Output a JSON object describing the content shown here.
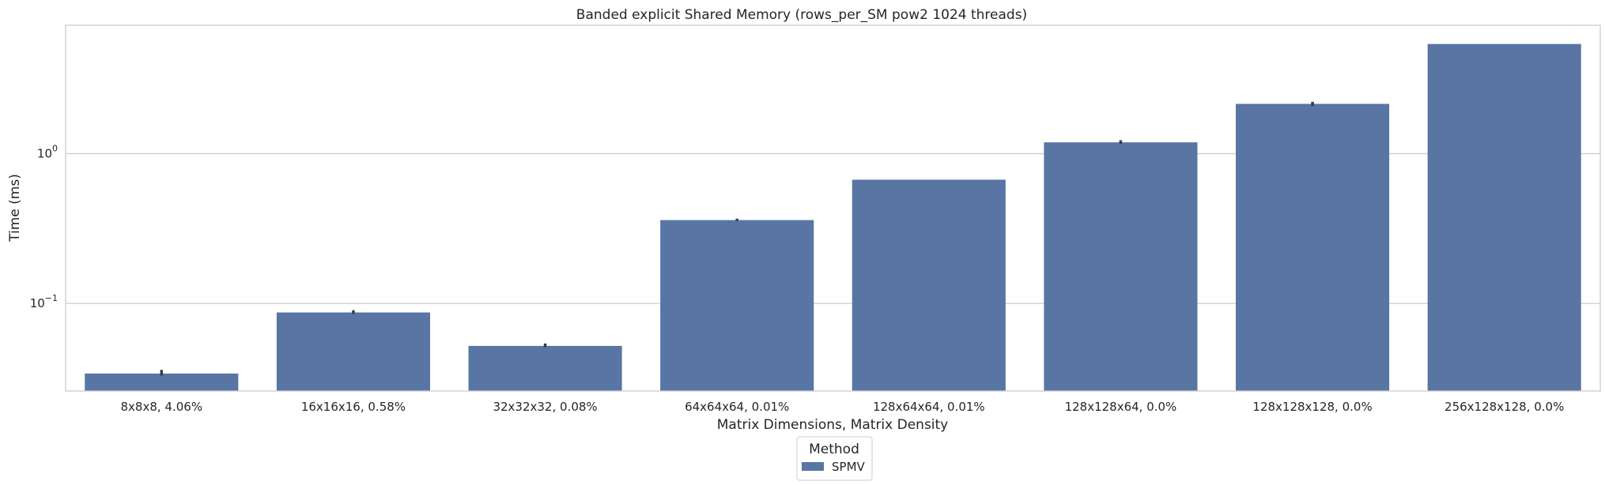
{
  "chart_data": {
    "type": "bar",
    "title": "Banded explicit Shared Memory (rows_per_SM pow2 1024 threads)",
    "xlabel": "Matrix Dimensions, Matrix Density",
    "ylabel": "Time (ms)",
    "yscale": "log",
    "ylim": [
      0.026,
      7.2
    ],
    "yticks": [
      {
        "value": 0.1,
        "base": "10",
        "exp": "−1"
      },
      {
        "value": 1,
        "base": "10",
        "exp": "0"
      }
    ],
    "grid": "horizontal",
    "categories": [
      "8x8x8, 4.06%",
      "16x16x16, 0.58%",
      "32x32x32, 0.08%",
      "64x64x64, 0.01%",
      "128x64x64, 0.01%",
      "128x128x64, 0.0%",
      "128x128x128, 0.0%",
      "256x128x128, 0.0%"
    ],
    "series": [
      {
        "name": "SPMV",
        "color": "#5875a4",
        "values": [
          0.034,
          0.087,
          0.052,
          0.36,
          0.67,
          1.19,
          2.15,
          5.4
        ],
        "error_bars": [
          [
            0.033,
            0.036
          ],
          [
            0.085,
            0.09
          ],
          [
            0.051,
            0.054
          ],
          [
            0.355,
            0.368
          ],
          null,
          [
            1.16,
            1.23
          ],
          [
            2.08,
            2.22
          ],
          null
        ]
      }
    ],
    "legend": {
      "title": "Method",
      "placement": "bottom-center"
    }
  }
}
